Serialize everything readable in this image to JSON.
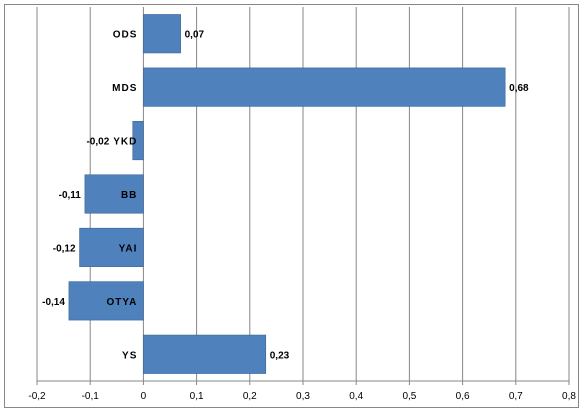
{
  "chart_data": {
    "type": "bar",
    "orientation": "horizontal",
    "categories": [
      "ODS",
      "MDS",
      "YKD",
      "BB",
      "YAI",
      "OTYA",
      "YS"
    ],
    "values": [
      0.07,
      0.68,
      -0.02,
      -0.11,
      -0.12,
      -0.14,
      0.23
    ],
    "value_labels": [
      "0,07",
      "0,68",
      "-0,02",
      "-0,11",
      "-0,12",
      "-0,14",
      "0,23"
    ],
    "xlim": [
      -0.2,
      0.8
    ],
    "x_ticks": [
      -0.2,
      -0.1,
      0,
      0.1,
      0.2,
      0.3,
      0.4,
      0.5,
      0.6,
      0.7,
      0.8
    ],
    "x_tick_labels": [
      "-0,2",
      "-0,1",
      "0",
      "0,1",
      "0,2",
      "0,3",
      "0,4",
      "0,5",
      "0,6",
      "0,7",
      "0,8"
    ],
    "grid": "vertical",
    "legend": "none",
    "title": "",
    "xlabel": "",
    "ylabel": "",
    "bar_color": "#4F81BD",
    "bar_edge_color": "#3A6496",
    "grid_color": "#878787"
  }
}
